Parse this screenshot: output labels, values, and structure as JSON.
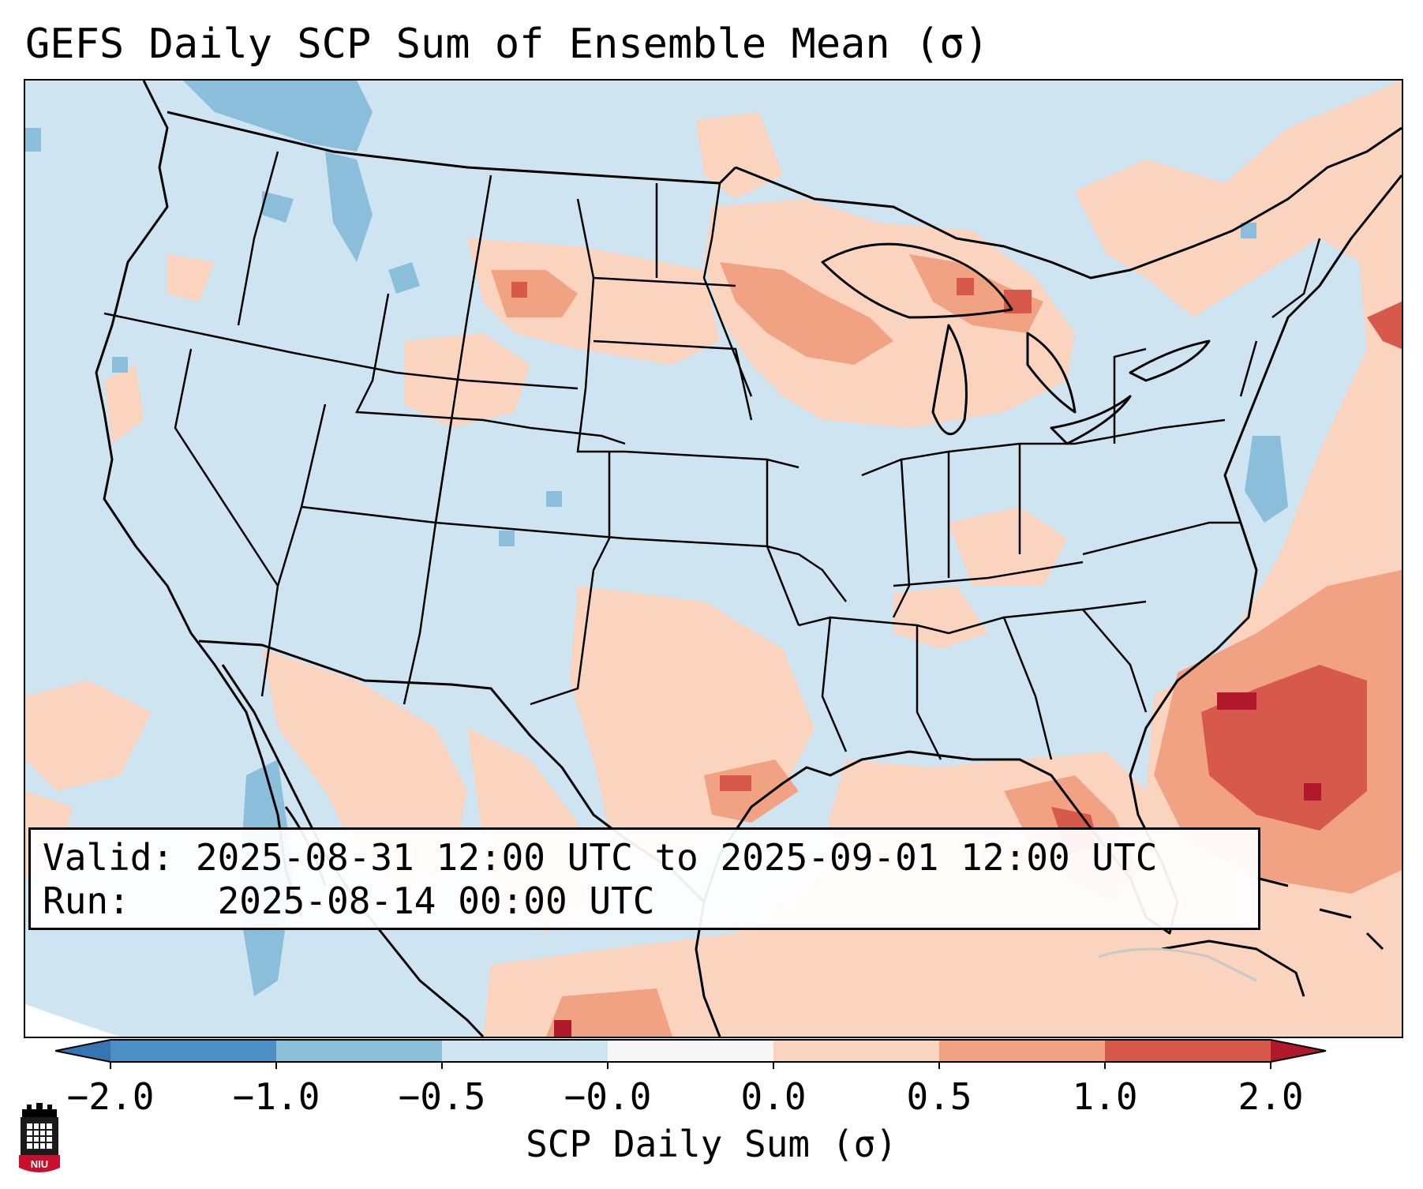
{
  "title": "GEFS Daily SCP Sum of Ensemble Mean (σ)",
  "info": {
    "valid_label": "Valid:",
    "valid_value": "2025-08-31 12:00 UTC to 2025-09-01 12:00 UTC",
    "run_label": "Run:",
    "run_value": "2025-08-14 00:00 UTC"
  },
  "colorbar": {
    "label": "SCP Daily Sum (σ)",
    "ticks": [
      "−2.0",
      "−1.0",
      "−0.5",
      "−0.0",
      "0.0",
      "0.5",
      "1.0",
      "2.0"
    ],
    "bins": [
      {
        "from": -2.0,
        "to": -1.0,
        "color": "#4a90c4"
      },
      {
        "from": -1.0,
        "to": -0.5,
        "color": "#8bbedb"
      },
      {
        "from": -0.5,
        "to": -0.0,
        "color": "#cfe4f1"
      },
      {
        "from": -0.0,
        "to": 0.0,
        "color": "#f7f7f7"
      },
      {
        "from": 0.0,
        "to": 0.5,
        "color": "#fbd4bf"
      },
      {
        "from": 0.5,
        "to": 1.0,
        "color": "#f0a283"
      },
      {
        "from": 1.0,
        "to": 2.0,
        "color": "#d7594b"
      }
    ],
    "under_color": "#3575b3",
    "over_color": "#b2182b"
  },
  "logo": {
    "text": "NIU"
  },
  "colors": {
    "land_neutral": "#cfe4f1",
    "outline": "#000000"
  }
}
